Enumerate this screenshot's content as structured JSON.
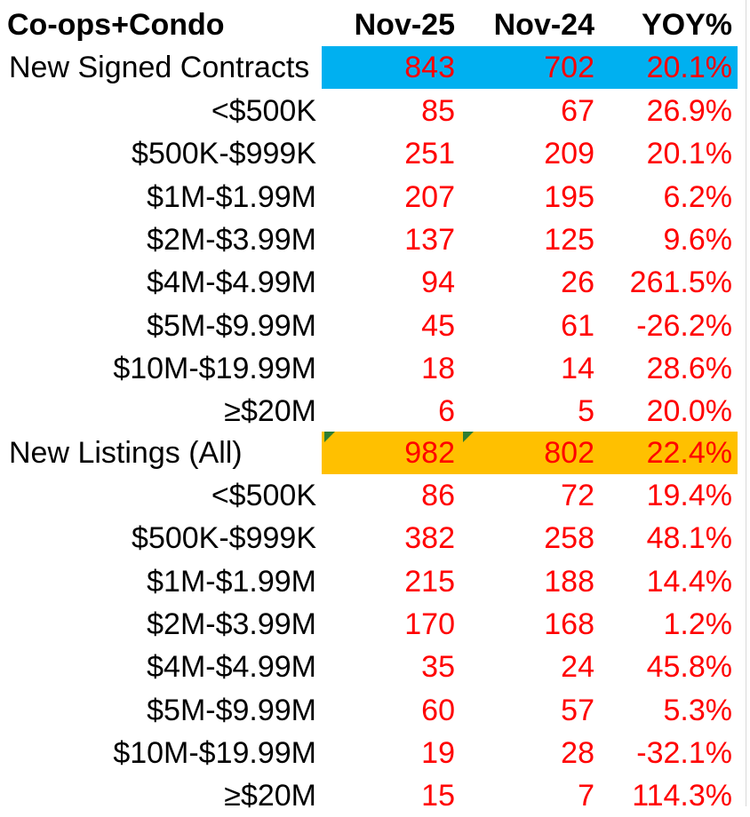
{
  "header": {
    "title": "Co-ops+Condo",
    "col1": "Nov-25",
    "col2": "Nov-24",
    "col3": "YOY%"
  },
  "colors": {
    "contracts_highlight": "#00b0f0",
    "listings_highlight": "#ffc000",
    "value_text": "#ff0000",
    "note_marker": "#2e7d32"
  },
  "contracts": {
    "label": "New Signed Contracts",
    "total": {
      "v1": "843",
      "v2": "702",
      "v3": "20.1%"
    },
    "rows": [
      {
        "label": "<$500K",
        "v1": "85",
        "v2": "67",
        "v3": "26.9%"
      },
      {
        "label": "$500K-$999K",
        "v1": "251",
        "v2": "209",
        "v3": "20.1%"
      },
      {
        "label": "$1M-$1.99M",
        "v1": "207",
        "v2": "195",
        "v3": "6.2%"
      },
      {
        "label": "$2M-$3.99M",
        "v1": "137",
        "v2": "125",
        "v3": "9.6%"
      },
      {
        "label": "$4M-$4.99M",
        "v1": "94",
        "v2": "26",
        "v3": "261.5%"
      },
      {
        "label": "$5M-$9.99M",
        "v1": "45",
        "v2": "61",
        "v3": "-26.2%"
      },
      {
        "label": "$10M-$19.99M",
        "v1": "18",
        "v2": "14",
        "v3": "28.6%"
      },
      {
        "label": "≥$20M",
        "v1": "6",
        "v2": "5",
        "v3": "20.0%"
      }
    ]
  },
  "listings": {
    "label": "New Listings (All)",
    "total": {
      "v1": "982",
      "v2": "802",
      "v3": "22.4%"
    },
    "rows": [
      {
        "label": "<$500K",
        "v1": "86",
        "v2": "72",
        "v3": "19.4%"
      },
      {
        "label": "$500K-$999K",
        "v1": "382",
        "v2": "258",
        "v3": "48.1%"
      },
      {
        "label": "$1M-$1.99M",
        "v1": "215",
        "v2": "188",
        "v3": "14.4%"
      },
      {
        "label": "$2M-$3.99M",
        "v1": "170",
        "v2": "168",
        "v3": "1.2%"
      },
      {
        "label": "$4M-$4.99M",
        "v1": "35",
        "v2": "24",
        "v3": "45.8%"
      },
      {
        "label": "$5M-$9.99M",
        "v1": "60",
        "v2": "57",
        "v3": "5.3%"
      },
      {
        "label": "$10M-$19.99M",
        "v1": "19",
        "v2": "28",
        "v3": "-32.1%"
      },
      {
        "label": "≥$20M",
        "v1": "15",
        "v2": "7",
        "v3": "114.3%"
      }
    ]
  }
}
